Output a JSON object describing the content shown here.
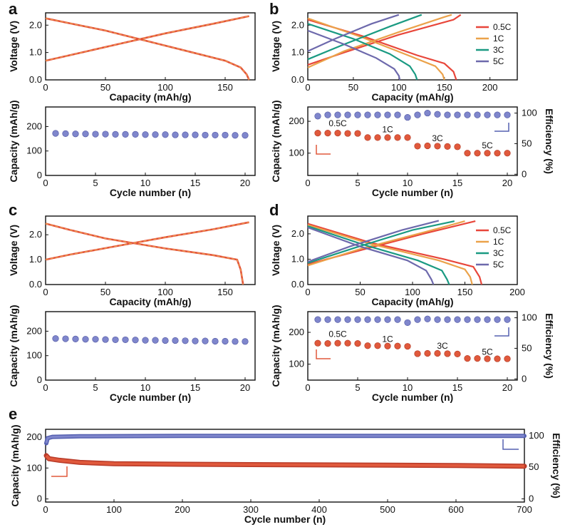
{
  "colors": {
    "red": "#e2523a",
    "orange_dash": "#f0a050",
    "c05": "#e8463a",
    "c1": "#eba24a",
    "c3": "#1a9a82",
    "c5": "#6d69ac",
    "blue_pt": "#7f86cc",
    "red_pt": "#e0593c",
    "axis": "#111111"
  },
  "chart_data": [
    {
      "id": "a",
      "label": "a",
      "type": "line",
      "xlabel": "Capacity (mAh/g)",
      "ylabel": "Voltage (V)",
      "xlim": [
        0,
        175
      ],
      "ylim": [
        0,
        2.45
      ],
      "xticks": [
        0,
        50,
        100,
        150
      ],
      "yticks": [
        0.0,
        1.0,
        2.0
      ],
      "series": [
        {
          "name": "discharge",
          "points": [
            [
              0,
              2.25
            ],
            [
              20,
              2.07
            ],
            [
              50,
              1.8
            ],
            [
              100,
              1.25
            ],
            [
              150,
              0.7
            ],
            [
              163,
              0.45
            ],
            [
              168,
              0.2
            ],
            [
              170,
              0.0
            ]
          ]
        },
        {
          "name": "charge",
          "points": [
            [
              0,
              0.7
            ],
            [
              20,
              0.9
            ],
            [
              60,
              1.3
            ],
            [
              100,
              1.7
            ],
            [
              140,
              2.05
            ],
            [
              170,
              2.33
            ]
          ]
        }
      ]
    },
    {
      "id": "b",
      "label": "b",
      "type": "line",
      "xlabel": "Capacity (mAh/g)",
      "ylabel": "Voltage (V)",
      "xlim": [
        0,
        230
      ],
      "ylim": [
        0,
        2.45
      ],
      "xticks": [
        0,
        50,
        100,
        150,
        200
      ],
      "yticks": [
        0.0,
        1.0,
        2.0
      ],
      "legend": [
        "0.5C",
        "1C",
        "3C",
        "5C"
      ],
      "series": [
        {
          "name": "0.5C",
          "color_key": "c05",
          "discharge": [
            [
              0,
              2.2
            ],
            [
              60,
              1.6
            ],
            [
              120,
              0.9
            ],
            [
              150,
              0.6
            ],
            [
              160,
              0.3
            ],
            [
              163,
              0.0
            ]
          ],
          "charge": [
            [
              0,
              0.55
            ],
            [
              40,
              1.0
            ],
            [
              100,
              1.65
            ],
            [
              160,
              2.2
            ],
            [
              168,
              2.38
            ]
          ]
        },
        {
          "name": "1C",
          "color_key": "c1",
          "discharge": [
            [
              0,
              2.25
            ],
            [
              60,
              1.55
            ],
            [
              110,
              0.9
            ],
            [
              140,
              0.5
            ],
            [
              148,
              0.2
            ],
            [
              150,
              0.0
            ]
          ],
          "charge": [
            [
              0,
              0.45
            ],
            [
              40,
              1.05
            ],
            [
              100,
              1.75
            ],
            [
              150,
              2.3
            ],
            [
              158,
              2.38
            ]
          ]
        },
        {
          "name": "3C",
          "color_key": "c3",
          "discharge": [
            [
              0,
              2.05
            ],
            [
              50,
              1.5
            ],
            [
              90,
              0.95
            ],
            [
              112,
              0.5
            ],
            [
              118,
              0.2
            ],
            [
              120,
              0.0
            ]
          ],
          "charge": [
            [
              0,
              0.75
            ],
            [
              40,
              1.3
            ],
            [
              90,
              1.95
            ],
            [
              125,
              2.38
            ]
          ]
        },
        {
          "name": "5C",
          "color_key": "c5",
          "discharge": [
            [
              0,
              1.8
            ],
            [
              40,
              1.3
            ],
            [
              75,
              0.8
            ],
            [
              95,
              0.4
            ],
            [
              100,
              0.15
            ],
            [
              101,
              0.0
            ]
          ],
          "charge": [
            [
              0,
              1.05
            ],
            [
              30,
              1.5
            ],
            [
              70,
              2.05
            ],
            [
              100,
              2.38
            ]
          ]
        }
      ]
    },
    {
      "id": "a_cycle",
      "type": "scatter",
      "xlabel": "Cycle number (n)",
      "ylabel": "Capacity (mAh/g)",
      "xlim": [
        0,
        21
      ],
      "ylim": [
        0,
        280
      ],
      "xticks": [
        0,
        5,
        10,
        15,
        20
      ],
      "yticks": [
        0,
        100,
        200
      ],
      "x": [
        1,
        2,
        3,
        4,
        5,
        6,
        7,
        8,
        9,
        10,
        11,
        12,
        13,
        14,
        15,
        16,
        17,
        18,
        19,
        20
      ],
      "values": [
        172,
        171,
        170,
        170,
        169,
        169,
        168,
        168,
        168,
        167,
        167,
        167,
        166,
        166,
        166,
        165,
        165,
        165,
        164,
        164
      ]
    },
    {
      "id": "b_rate",
      "type": "scatter",
      "xlabel": "Cycle number (n)",
      "ylabel": "Capacity (mAh/g)",
      "y2label": "Efficiency (%)",
      "xlim": [
        0,
        21
      ],
      "ylim": [
        30,
        245
      ],
      "y2lim": [
        -2,
        110
      ],
      "xticks": [
        0,
        5,
        10,
        15,
        20
      ],
      "yticks": [
        100,
        200
      ],
      "y2ticks": [
        0,
        50,
        100
      ],
      "x": [
        1,
        2,
        3,
        4,
        5,
        6,
        7,
        8,
        9,
        10,
        11,
        12,
        13,
        14,
        15,
        16,
        17,
        18,
        19,
        20
      ],
      "capacity": [
        163,
        163,
        163,
        162,
        162,
        149,
        149,
        149,
        149,
        149,
        122,
        123,
        122,
        121,
        120,
        100,
        100,
        100,
        100,
        100
      ],
      "efficiency": [
        95,
        97,
        97,
        97,
        97,
        97,
        97,
        97,
        97,
        93,
        97,
        100,
        98,
        97,
        97,
        97,
        97,
        97,
        97,
        97
      ],
      "rate_labels": [
        {
          "text": "0.5C",
          "x": 3,
          "y": 185
        },
        {
          "text": "1C",
          "x": 8,
          "y": 166
        },
        {
          "text": "3C",
          "x": 13,
          "y": 138
        },
        {
          "text": "5C",
          "x": 18,
          "y": 115
        }
      ]
    },
    {
      "id": "c",
      "label": "c",
      "type": "line",
      "xlabel": "Capacity (mAh/g)",
      "ylabel": "Voltage (V)",
      "xlim": [
        0,
        175
      ],
      "ylim": [
        0,
        2.75
      ],
      "xticks": [
        0,
        50,
        100,
        150
      ],
      "yticks": [
        0.0,
        1.0,
        2.0
      ],
      "series": [
        {
          "name": "discharge",
          "points": [
            [
              0,
              2.45
            ],
            [
              20,
              2.2
            ],
            [
              50,
              1.85
            ],
            [
              100,
              1.45
            ],
            [
              140,
              1.18
            ],
            [
              160,
              1.0
            ],
            [
              163,
              0.6
            ],
            [
              164,
              0.3
            ],
            [
              165,
              0.0
            ]
          ]
        },
        {
          "name": "charge",
          "points": [
            [
              0,
              1.0
            ],
            [
              20,
              1.2
            ],
            [
              60,
              1.55
            ],
            [
              100,
              1.9
            ],
            [
              140,
              2.22
            ],
            [
              170,
              2.5
            ]
          ]
        }
      ]
    },
    {
      "id": "d",
      "label": "d",
      "type": "line",
      "xlabel": "Capacity (mAh/g)",
      "ylabel": "Voltage (V)",
      "xlim": [
        0,
        200
      ],
      "ylim": [
        0,
        2.7
      ],
      "xticks": [
        0,
        50,
        100,
        150,
        200
      ],
      "yticks": [
        0.0,
        1.0,
        2.0
      ],
      "legend": [
        "0.5C",
        "1C",
        "3C",
        "5C"
      ],
      "series": [
        {
          "name": "0.5C",
          "color_key": "c05",
          "discharge": [
            [
              0,
              2.4
            ],
            [
              60,
              1.65
            ],
            [
              130,
              1.0
            ],
            [
              158,
              0.7
            ],
            [
              164,
              0.3
            ],
            [
              166,
              0.0
            ]
          ],
          "charge": [
            [
              0,
              0.8
            ],
            [
              50,
              1.35
            ],
            [
              110,
              2.0
            ],
            [
              160,
              2.5
            ]
          ]
        },
        {
          "name": "1C",
          "color_key": "c1",
          "discharge": [
            [
              0,
              2.35
            ],
            [
              60,
              1.6
            ],
            [
              125,
              0.95
            ],
            [
              150,
              0.6
            ],
            [
              155,
              0.3
            ],
            [
              157,
              0.0
            ]
          ],
          "charge": [
            [
              0,
              0.75
            ],
            [
              50,
              1.4
            ],
            [
              110,
              2.05
            ],
            [
              150,
              2.5
            ]
          ]
        },
        {
          "name": "3C",
          "color_key": "c3",
          "discharge": [
            [
              0,
              2.3
            ],
            [
              55,
              1.55
            ],
            [
              105,
              0.95
            ],
            [
              128,
              0.55
            ],
            [
              133,
              0.2
            ],
            [
              135,
              0.0
            ]
          ],
          "charge": [
            [
              0,
              0.85
            ],
            [
              45,
              1.45
            ],
            [
              100,
              2.15
            ],
            [
              140,
              2.5
            ]
          ]
        },
        {
          "name": "5C",
          "color_key": "c5",
          "discharge": [
            [
              0,
              2.25
            ],
            [
              50,
              1.5
            ],
            [
              95,
              0.95
            ],
            [
              113,
              0.55
            ],
            [
              118,
              0.2
            ],
            [
              120,
              0.0
            ]
          ],
          "charge": [
            [
              0,
              0.9
            ],
            [
              40,
              1.5
            ],
            [
              90,
              2.15
            ],
            [
              125,
              2.52
            ]
          ]
        }
      ]
    },
    {
      "id": "c_cycle",
      "type": "scatter",
      "xlabel": "Cycle number (n)",
      "ylabel": "Capacity (mAh/g)",
      "xlim": [
        0,
        21
      ],
      "ylim": [
        0,
        280
      ],
      "xticks": [
        0,
        5,
        10,
        15,
        20
      ],
      "yticks": [
        0,
        100,
        200
      ],
      "x": [
        1,
        2,
        3,
        4,
        5,
        6,
        7,
        8,
        9,
        10,
        11,
        12,
        13,
        14,
        15,
        16,
        17,
        18,
        19,
        20
      ],
      "values": [
        170,
        169,
        168,
        167,
        167,
        166,
        165,
        165,
        164,
        163,
        163,
        162,
        162,
        161,
        160,
        160,
        159,
        159,
        158,
        158
      ]
    },
    {
      "id": "d_rate",
      "type": "scatter",
      "xlabel": "Cycle number (n)",
      "ylabel": "Capacity (mAh/g)",
      "y2label": "Efficiency (%)",
      "xlim": [
        0,
        21
      ],
      "ylim": [
        50,
        265
      ],
      "y2lim": [
        -2,
        110
      ],
      "xticks": [
        0,
        5,
        10,
        15,
        20
      ],
      "yticks": [
        100,
        200
      ],
      "y2ticks": [
        0,
        50,
        100
      ],
      "x": [
        1,
        2,
        3,
        4,
        5,
        6,
        7,
        8,
        9,
        10,
        11,
        12,
        13,
        14,
        15,
        16,
        17,
        18,
        19,
        20
      ],
      "capacity": [
        166,
        165,
        166,
        166,
        165,
        158,
        158,
        157,
        157,
        156,
        133,
        134,
        134,
        133,
        132,
        118,
        118,
        117,
        117,
        117
      ],
      "efficiency": [
        97,
        97,
        97,
        97,
        97,
        97,
        97,
        97,
        97,
        92,
        97,
        98,
        97,
        97,
        97,
        97,
        97,
        97,
        97,
        97
      ],
      "rate_labels": [
        {
          "text": "0.5C",
          "x": 3,
          "y": 185
        },
        {
          "text": "1C",
          "x": 8,
          "y": 170
        },
        {
          "text": "3C",
          "x": 13.5,
          "y": 148
        },
        {
          "text": "5C",
          "x": 18,
          "y": 130
        }
      ]
    },
    {
      "id": "e",
      "label": "e",
      "type": "scatter",
      "xlabel": "Cycle number (n)",
      "ylabel": "Capacity (mAh/g)",
      "y2label": "Efficiency (%)",
      "xlim": [
        0,
        700
      ],
      "ylim": [
        -10,
        225
      ],
      "y2lim": [
        -5,
        110
      ],
      "xticks": [
        0,
        100,
        200,
        300,
        400,
        500,
        600,
        700
      ],
      "yticks": [
        0,
        100,
        200
      ],
      "y2ticks": [
        0,
        50,
        100
      ],
      "capacity_curve": [
        [
          1,
          140
        ],
        [
          5,
          130
        ],
        [
          20,
          125
        ],
        [
          50,
          118
        ],
        [
          100,
          114
        ],
        [
          200,
          112
        ],
        [
          300,
          111
        ],
        [
          400,
          110
        ],
        [
          500,
          109
        ],
        [
          600,
          108
        ],
        [
          700,
          106
        ]
      ],
      "efficiency_curve": [
        [
          1,
          88
        ],
        [
          3,
          96
        ],
        [
          10,
          98
        ],
        [
          50,
          99
        ],
        [
          200,
          99.5
        ],
        [
          400,
          99.5
        ],
        [
          700,
          99.5
        ]
      ]
    }
  ]
}
